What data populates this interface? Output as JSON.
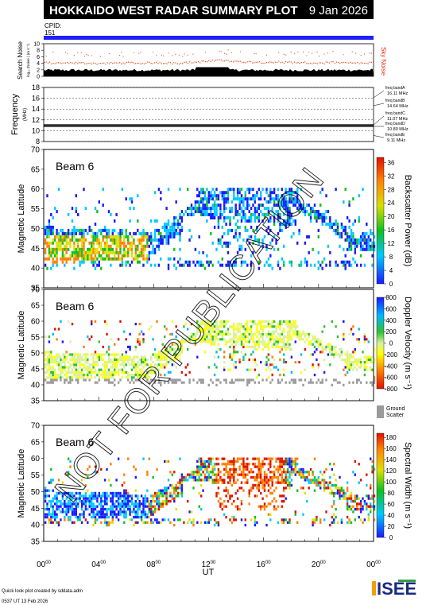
{
  "header": {
    "title": "HOKKAIDO WEST RADAR SUMMARY PLOT",
    "date": "9 Jan 2026",
    "cpid_label": "CPID:",
    "cpid_value": "151"
  },
  "colors": {
    "header_bg": "#000000",
    "cpid_bar": "#2020ff",
    "noise_dots": "#e05020",
    "sky_noise": "#e03010",
    "ground_scatter": "#9a9a9a",
    "watermark": "#000000"
  },
  "watermark": "NOT FOR PUBLICATION",
  "footer": {
    "line1": "Quick look plot created by sddata.adm",
    "line2": "0537 UT 13 Feb 2026",
    "logo": "ISEE"
  },
  "x_axis": {
    "label": "UT",
    "ticks": [
      {
        "h": "00",
        "m": "00",
        "hour": 0
      },
      {
        "h": "04",
        "m": "00",
        "hour": 4
      },
      {
        "h": "08",
        "m": "00",
        "hour": 8
      },
      {
        "h": "12",
        "m": "00",
        "hour": 12
      },
      {
        "h": "16",
        "m": "00",
        "hour": 16
      },
      {
        "h": "20",
        "m": "00",
        "hour": 20
      },
      {
        "h": "00",
        "m": "00",
        "hour": 24
      }
    ]
  },
  "chart_data": [
    {
      "type": "line",
      "panel": "search_noise",
      "ylabel": "Search Noise",
      "ylabel_sub": "log₁₀ (Noise ) (m s⁻¹)",
      "right_label": "Sky Noise",
      "yticks": [
        0,
        2,
        4,
        6,
        8,
        10
      ],
      "ylim": [
        0,
        10
      ],
      "series": [
        {
          "name": "Sky Noise",
          "x": [
            0,
            1,
            2,
            3,
            4,
            5,
            6,
            7,
            8,
            9,
            10,
            11,
            12,
            13,
            14,
            15,
            16,
            17,
            18,
            19,
            20,
            21,
            22,
            23,
            24
          ],
          "values": [
            4.2,
            4.0,
            4.1,
            4.0,
            3.9,
            4.0,
            4.1,
            4.0,
            4.2,
            4.1,
            4.0,
            4.3,
            4.6,
            4.9,
            4.5,
            4.4,
            4.3,
            4.4,
            4.2,
            4.1,
            4.0,
            4.2,
            4.1,
            4.0,
            4.1
          ]
        }
      ]
    },
    {
      "type": "scatter",
      "panel": "frequency",
      "ylabel": "Frequency",
      "ylabel_sub": "(MHz)",
      "yticks": [
        8,
        10,
        12,
        14,
        16,
        18
      ],
      "ylim": [
        8,
        18
      ],
      "bands": [
        {
          "name": "freq bandA",
          "value": "16.11 MHz",
          "mhz": 16.11
        },
        {
          "name": "freq bandB",
          "value": "14.64 MHz",
          "mhz": 14.64
        },
        {
          "name": "freq bandC",
          "value": "11.07 MHz",
          "mhz": 11.07
        },
        {
          "name": "freq bandD",
          "value": "10.80 MHz",
          "mhz": 10.8
        },
        {
          "name": "freq bandE",
          "value": "9.11 MHz",
          "mhz": 9.11
        }
      ]
    },
    {
      "type": "heatmap",
      "panel": "power",
      "beam_label": "Beam  6",
      "ylabel": "Magnetic Latitude",
      "yticks": [
        35,
        40,
        45,
        50,
        55,
        60,
        65,
        70
      ],
      "ylim": [
        35,
        70
      ],
      "colorbar_label": "Backscatter Power (dB)",
      "colorbar_ticks": [
        "0",
        "4",
        "8",
        "12",
        "16",
        "20",
        "24",
        "28",
        "32",
        "36"
      ],
      "colorbar_range": [
        0,
        36
      ]
    },
    {
      "type": "heatmap",
      "panel": "velocity",
      "beam_label": "Beam  6",
      "ylabel": "Magnetic Latitude",
      "yticks": [
        35,
        40,
        45,
        50,
        55,
        60,
        65,
        70
      ],
      "ylim": [
        35,
        70
      ],
      "colorbar_label": "Doppler Velocity (m s⁻¹)",
      "colorbar_ticks": [
        "-800",
        "-600",
        "-400",
        "-200",
        "0",
        "200",
        "400",
        "600",
        "800"
      ],
      "colorbar_range": [
        -800,
        800
      ],
      "ground_label_1": "Ground",
      "ground_label_2": "Scatter"
    },
    {
      "type": "heatmap",
      "panel": "width",
      "beam_label": "Beam  6",
      "ylabel": "Magnetic Latitude",
      "yticks": [
        35,
        40,
        45,
        50,
        55,
        60,
        65,
        70
      ],
      "ylim": [
        35,
        70
      ],
      "colorbar_label": "Spectral Width (m s⁻¹)",
      "colorbar_ticks": [
        "0",
        "20",
        "40",
        "60",
        "80",
        "100",
        "120",
        "140",
        "160",
        "180"
      ],
      "colorbar_range": [
        0,
        180
      ]
    }
  ]
}
